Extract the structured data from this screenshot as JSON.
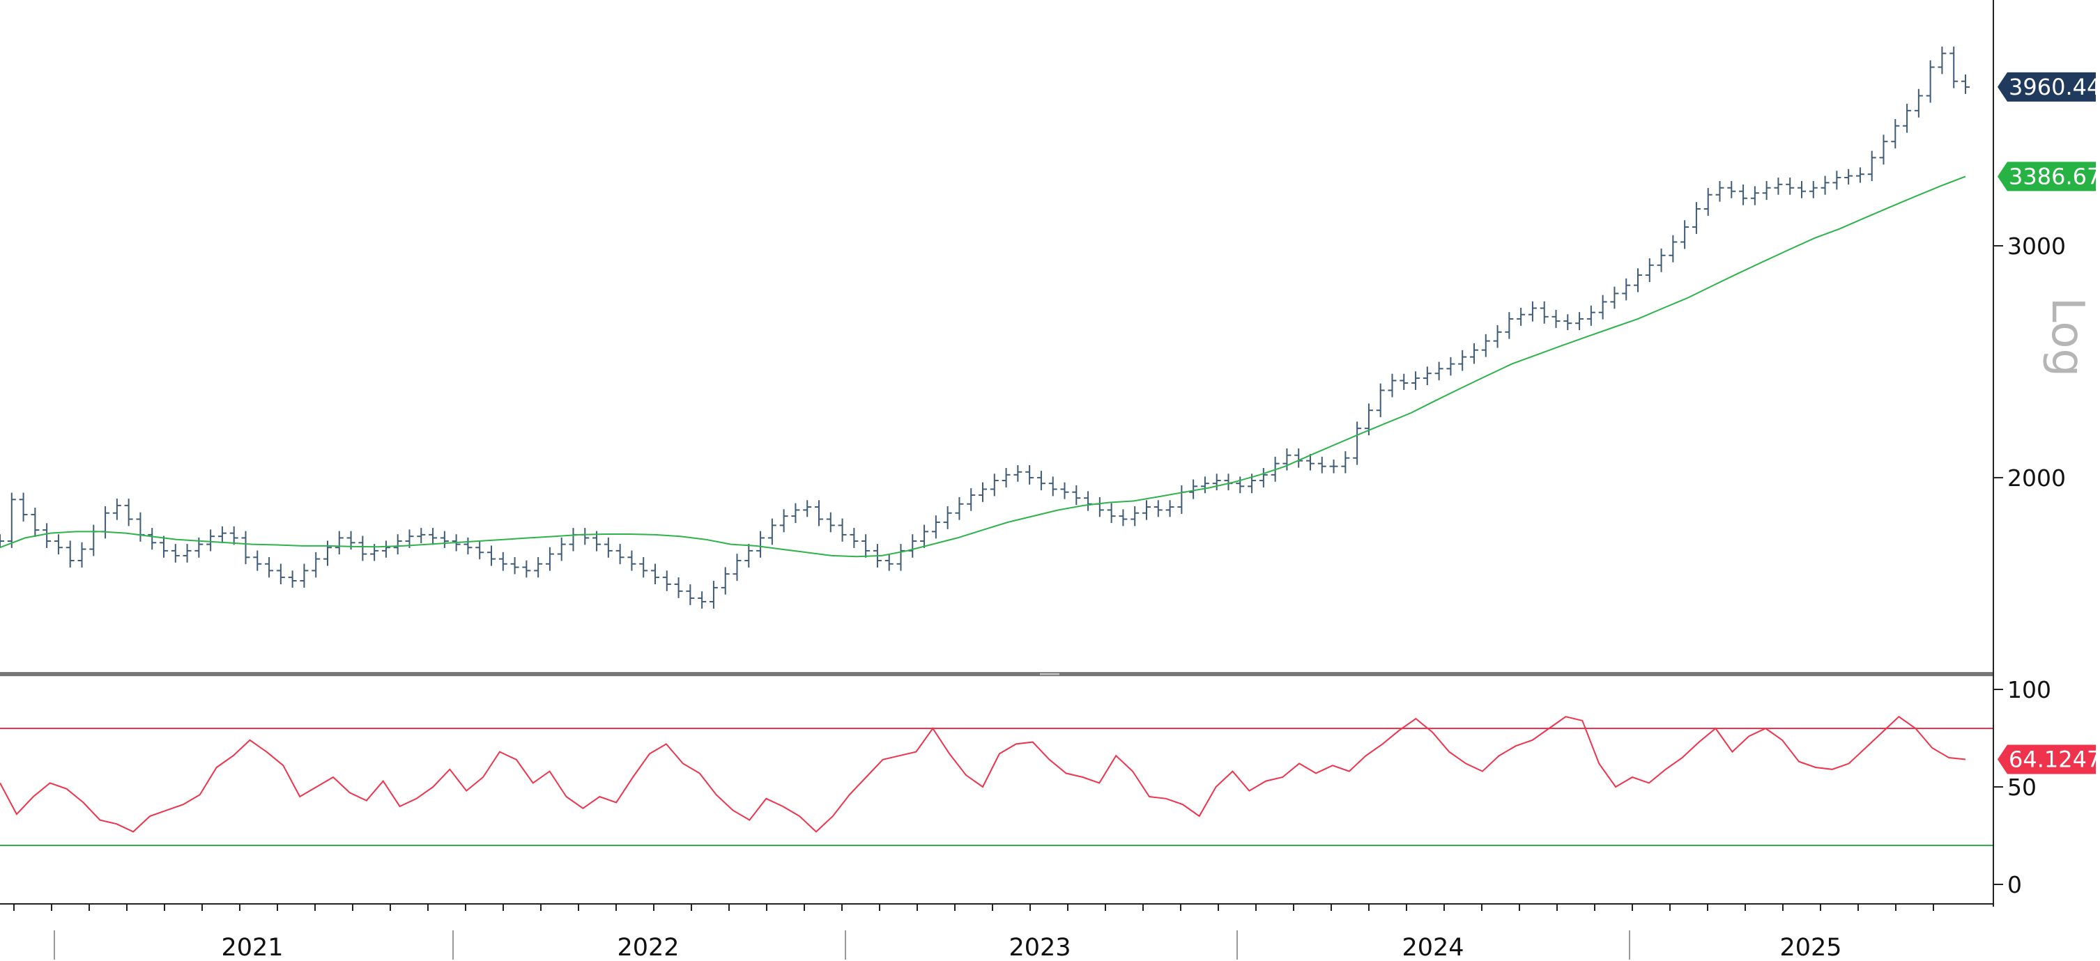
{
  "chart_data": [
    {
      "type": "line",
      "panel": "price",
      "scale": "log",
      "scale_label": "Log",
      "x_labels": [
        "2021",
        "2022",
        "2023",
        "2024",
        "2025"
      ],
      "y_ticks": [
        "2000",
        "3000"
      ],
      "ylim": [
        1450,
        4500
      ],
      "series": [
        {
          "style": "ohlc-bars",
          "color": "#3e5c78",
          "last_value": 3960.44,
          "last_value_label": "3960.44",
          "values": [
            1790,
            1925,
            1875,
            1825,
            1790,
            1770,
            1730,
            1765,
            1820,
            1880,
            1905,
            1860,
            1810,
            1785,
            1760,
            1745,
            1760,
            1780,
            1805,
            1815,
            1800,
            1740,
            1720,
            1700,
            1680,
            1670,
            1700,
            1735,
            1770,
            1800,
            1785,
            1750,
            1760,
            1770,
            1790,
            1805,
            1810,
            1800,
            1790,
            1780,
            1770,
            1755,
            1735,
            1720,
            1710,
            1700,
            1720,
            1750,
            1780,
            1810,
            1800,
            1780,
            1760,
            1740,
            1720,
            1700,
            1680,
            1660,
            1640,
            1620,
            1610,
            1650,
            1690,
            1730,
            1760,
            1800,
            1840,
            1870,
            1890,
            1900,
            1860,
            1840,
            1810,
            1790,
            1760,
            1730,
            1720,
            1760,
            1790,
            1820,
            1850,
            1880,
            1910,
            1940,
            1960,
            1990,
            2010,
            2020,
            2000,
            1980,
            1960,
            1950,
            1930,
            1910,
            1890,
            1870,
            1860,
            1880,
            1900,
            1890,
            1900,
            1950,
            1970,
            1980,
            1990,
            1980,
            1970,
            1990,
            2010,
            2050,
            2080,
            2060,
            2050,
            2040,
            2040,
            2070,
            2180,
            2250,
            2330,
            2370,
            2360,
            2380,
            2400,
            2420,
            2440,
            2470,
            2500,
            2540,
            2580,
            2640,
            2660,
            2690,
            2650,
            2630,
            2620,
            2640,
            2670,
            2720,
            2760,
            2800,
            2850,
            2900,
            2950,
            3020,
            3100,
            3200,
            3280,
            3320,
            3300,
            3260,
            3290,
            3320,
            3340,
            3320,
            3300,
            3320,
            3350,
            3380,
            3390,
            3400,
            3500,
            3600,
            3700,
            3800,
            3900,
            4100,
            4200,
            4000,
            3960
          ]
        },
        {
          "style": "line",
          "color": "#2db34a",
          "last_value": 3386.67,
          "last_value_label": "3386.67",
          "values": [
            1770,
            1800,
            1815,
            1820,
            1820,
            1815,
            1805,
            1795,
            1790,
            1785,
            1780,
            1778,
            1775,
            1775,
            1773,
            1772,
            1775,
            1780,
            1785,
            1790,
            1795,
            1800,
            1805,
            1810,
            1812,
            1812,
            1810,
            1805,
            1795,
            1780,
            1775,
            1765,
            1755,
            1745,
            1742,
            1745,
            1760,
            1780,
            1800,
            1825,
            1850,
            1870,
            1890,
            1905,
            1915,
            1920,
            1935,
            1950,
            1965,
            1985,
            2010,
            2040,
            2080,
            2120,
            2160,
            2200,
            2240,
            2290,
            2340,
            2390,
            2440,
            2480,
            2520,
            2560,
            2600,
            2640,
            2690,
            2740,
            2800,
            2860,
            2920,
            2980,
            3040,
            3090,
            3150,
            3210,
            3270,
            3330,
            3386.67
          ]
        }
      ]
    },
    {
      "type": "line",
      "panel": "oscillator",
      "ylim": [
        0,
        100
      ],
      "y_ticks": [
        "0",
        "50",
        "100"
      ],
      "upper_level": 80,
      "lower_level": 20,
      "series": [
        {
          "style": "line",
          "color": "#f0334c",
          "last_value": 64.1247,
          "last_value_label": "64.1247",
          "values": [
            52,
            36,
            45,
            52,
            49,
            42,
            33,
            31,
            27,
            35,
            38,
            41,
            46,
            60,
            66,
            74,
            68,
            61,
            45,
            50,
            55,
            47,
            43,
            53,
            40,
            44,
            50,
            59,
            48,
            55,
            68,
            64,
            52,
            58,
            45,
            39,
            45,
            42,
            55,
            67,
            72,
            62,
            57,
            46,
            38,
            33,
            44,
            40,
            35,
            27,
            35,
            46,
            55,
            64,
            66,
            68,
            80,
            67,
            56,
            50,
            67,
            72,
            73,
            64,
            57,
            55,
            52,
            66,
            58,
            45,
            44,
            41,
            35,
            50,
            58,
            48,
            53,
            55,
            62,
            57,
            61,
            58,
            66,
            72,
            79,
            85,
            78,
            68,
            62,
            58,
            66,
            71,
            74,
            80,
            86,
            84,
            62,
            50,
            55,
            52,
            59,
            65,
            73,
            80,
            68,
            76,
            80,
            74,
            63,
            60,
            59,
            62,
            70,
            78,
            86,
            80,
            70,
            65,
            64.1247
          ]
        }
      ]
    }
  ]
}
